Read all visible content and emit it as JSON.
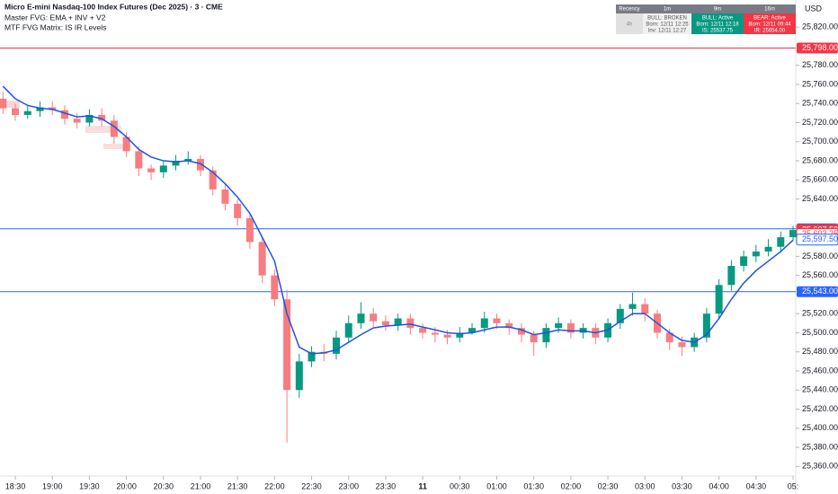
{
  "header": {
    "title": "Micro E-mini Nasdaq-100 Index Futures (Dec 2025) · 3 · CME",
    "indicator_1": "Master FVG: EMA + INV + V2",
    "indicator_2": "MTF FVG Matrix: IS IR Levels"
  },
  "matrix": {
    "columns": [
      "Recency",
      "1m",
      "9m",
      "16m"
    ],
    "row_label": "4h",
    "cells": [
      [
        "BULL: BROKEN",
        "Born: 12/11 12:25",
        "Inv: 12/11 12:27"
      ],
      [
        "BULL: Active",
        "Born: 12/11 12:18",
        "IS: 25537.75"
      ],
      [
        "BEAR: Active",
        "Born: 12/11 09:44",
        "IR: 25654.00"
      ]
    ]
  },
  "chart_data": {
    "type": "candlestick",
    "currency": "USD",
    "up_color": "#089981",
    "down_color": "#f77c80",
    "ema_color": "#1e53e5",
    "x": [
      "18:20",
      "18:30",
      "18:40",
      "18:50",
      "19:00",
      "19:10",
      "19:20",
      "19:30",
      "19:40",
      "19:50",
      "20:00",
      "20:10",
      "20:20",
      "20:30",
      "20:40",
      "20:50",
      "21:00",
      "21:10",
      "21:20",
      "21:30",
      "21:40",
      "21:50",
      "22:00",
      "22:10",
      "22:20",
      "22:30",
      "22:40",
      "22:50",
      "23:00",
      "23:10",
      "23:20",
      "23:30",
      "23:40",
      "23:50",
      "00:00",
      "00:10",
      "00:20",
      "00:30",
      "00:40",
      "00:50",
      "01:00",
      "01:10",
      "01:20",
      "01:30",
      "01:40",
      "01:50",
      "02:00",
      "02:10",
      "02:20",
      "02:30",
      "02:40",
      "02:50",
      "03:00",
      "03:10",
      "03:20",
      "03:30",
      "03:40",
      "03:50",
      "04:00",
      "04:10",
      "04:20",
      "04:30",
      "04:40",
      "04:50",
      "05:00"
    ],
    "open": [
      25745,
      25735,
      25728,
      25732,
      25736,
      25733,
      25724,
      25720,
      25728,
      25722,
      25705,
      25690,
      25672,
      25668,
      25675,
      25680,
      25682,
      25670,
      25650,
      25635,
      25620,
      25595,
      25560,
      25535,
      25440,
      25470,
      25480,
      25478,
      25495,
      25510,
      25520,
      25512,
      25508,
      25515,
      25505,
      25500,
      25498,
      25495,
      25500,
      25505,
      25515,
      25510,
      25505,
      25498,
      25490,
      25505,
      25510,
      25500,
      25505,
      25495,
      25510,
      25525,
      25530,
      25520,
      25500,
      25490,
      25485,
      25495,
      25520,
      25550,
      25570,
      25580,
      25585,
      25590,
      25600
    ],
    "high": [
      25752,
      25740,
      25738,
      25742,
      25742,
      25738,
      25730,
      25734,
      25735,
      25728,
      25710,
      25695,
      25676,
      25680,
      25686,
      25690,
      25686,
      25674,
      25655,
      25640,
      25625,
      25600,
      25566,
      25545,
      25478,
      25486,
      25488,
      25502,
      25518,
      25532,
      25526,
      25518,
      25520,
      25520,
      25510,
      25506,
      25503,
      25506,
      25510,
      25522,
      25520,
      25514,
      25510,
      25502,
      25510,
      25516,
      25514,
      25510,
      25510,
      25515,
      25530,
      25542,
      25536,
      25524,
      25504,
      25496,
      25500,
      25526,
      25556,
      25576,
      25586,
      25592,
      25598,
      25606,
      25612
    ],
    "low": [
      25729,
      25722,
      25724,
      25726,
      25728,
      25718,
      25714,
      25716,
      25716,
      25698,
      25684,
      25664,
      25660,
      25662,
      25670,
      25676,
      25664,
      25644,
      25628,
      25612,
      25588,
      25552,
      25528,
      25385,
      25432,
      25464,
      25470,
      25472,
      25490,
      25504,
      25506,
      25502,
      25502,
      25498,
      25494,
      25490,
      25488,
      25490,
      25498,
      25500,
      25504,
      25498,
      25490,
      25476,
      25484,
      25500,
      25494,
      25494,
      25488,
      25490,
      25504,
      25518,
      25512,
      25494,
      25482,
      25476,
      25480,
      25490,
      25514,
      25544,
      25564,
      25574,
      25580,
      25584,
      25596
    ],
    "close": [
      25735,
      25728,
      25732,
      25736,
      25733,
      25724,
      25720,
      25728,
      25722,
      25705,
      25690,
      25672,
      25668,
      25675,
      25680,
      25682,
      25670,
      25650,
      25635,
      25620,
      25595,
      25560,
      25535,
      25440,
      25470,
      25480,
      25478,
      25495,
      25510,
      25520,
      25512,
      25508,
      25515,
      25505,
      25500,
      25498,
      25495,
      25500,
      25505,
      25515,
      25510,
      25505,
      25498,
      25490,
      25505,
      25510,
      25500,
      25505,
      25495,
      25510,
      25525,
      25530,
      25520,
      25500,
      25490,
      25485,
      25495,
      25520,
      25550,
      25570,
      25580,
      25585,
      25590,
      25600,
      25607.5
    ],
    "ema_values": [
      25758,
      25745,
      25738,
      25735,
      25734,
      25730,
      25726,
      25727,
      25724,
      25716,
      25705,
      25692,
      25684,
      25680,
      25679,
      25680,
      25677,
      25668,
      25656,
      25642,
      25625,
      25600,
      25575,
      25520,
      25485,
      25478,
      25479,
      25482,
      25490,
      25498,
      25505,
      25507,
      25508,
      25509,
      25506,
      25503,
      25500,
      25499,
      25500,
      25503,
      25506,
      25506,
      25503,
      25498,
      25500,
      25503,
      25502,
      25502,
      25500,
      25503,
      25512,
      25520,
      25520,
      25510,
      25500,
      25492,
      25490,
      25498,
      25515,
      25535,
      25552,
      25565,
      25575,
      25585,
      25597
    ],
    "ylim": [
      25350,
      25835
    ],
    "yticks": [
      {
        "value": 25360,
        "label": "25,360.00"
      },
      {
        "value": 25380,
        "label": "25,380.00"
      },
      {
        "value": 25400,
        "label": "25,400.00"
      },
      {
        "value": 25420,
        "label": "25,420.00"
      },
      {
        "value": 25440,
        "label": "25,440.00"
      },
      {
        "value": 25460,
        "label": "25,460.00"
      },
      {
        "value": 25480,
        "label": "25,480.00"
      },
      {
        "value": 25500,
        "label": "25,500.00"
      },
      {
        "value": 25520,
        "label": "25,520.00"
      },
      {
        "value": 25560,
        "label": "25,560.00"
      },
      {
        "value": 25580,
        "label": "25,580.00"
      },
      {
        "value": 25640,
        "label": "25,640.00"
      },
      {
        "value": 25660,
        "label": "25,660.00"
      },
      {
        "value": 25680,
        "label": "25,680.00"
      },
      {
        "value": 25700,
        "label": "25,700.00"
      },
      {
        "value": 25720,
        "label": "25,720.00"
      },
      {
        "value": 25740,
        "label": "25,740.00"
      },
      {
        "value": 25760,
        "label": "25,760.00"
      },
      {
        "value": 25780,
        "label": "25,780.00"
      },
      {
        "value": 25820,
        "label": "25,820.00"
      }
    ],
    "xticks": [
      "18:30",
      "19:00",
      "19:30",
      "20:00",
      "20:30",
      "21:00",
      "21:30",
      "22:00",
      "22:30",
      "23:00",
      "23:30",
      {
        "value": "00:00",
        "label": "11"
      },
      "00:30",
      "01:00",
      "01:30",
      "02:00",
      "02:30",
      "03:00",
      "03:30",
      "04:00",
      "04:30",
      {
        "value": "05:00",
        "label": "05:"
      }
    ],
    "levels": [
      {
        "value": 25798,
        "label": "25,798.00",
        "color": "#f23645",
        "line": true
      },
      {
        "value": 25608.75,
        "label": "25,608.75",
        "color": "#2962ff",
        "line": true
      },
      {
        "value": 25543,
        "label": "25,543.00",
        "color": "#2962ff",
        "line": true
      }
    ],
    "price_labels": [
      {
        "value": 25607.5,
        "label": "25,607.50",
        "color": "#f23645",
        "countdown": "01:40"
      },
      {
        "value": 25603.25,
        "label": "25,603.25",
        "color": "#f23645",
        "outline": true
      },
      {
        "value": 25597.5,
        "label": "25,597.50",
        "color": "#2962ff",
        "outline": true
      }
    ]
  }
}
